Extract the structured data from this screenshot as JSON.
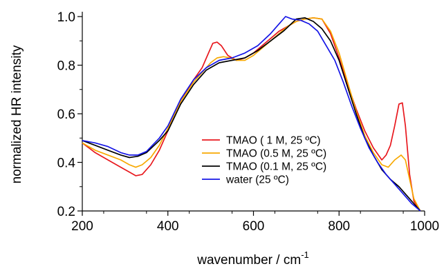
{
  "chart_data": {
    "type": "line",
    "xlabel": "wavenumber / cm",
    "xlabel_superscript": "-1",
    "ylabel": "normalized HR intensity",
    "xlim": [
      200,
      1000
    ],
    "ylim": [
      0.2,
      1.02
    ],
    "xticks": [
      200,
      400,
      600,
      800,
      1000
    ],
    "xtick_labels": [
      "200",
      "400",
      "600",
      "800",
      "1000"
    ],
    "yticks": [
      0.2,
      0.4,
      0.6,
      0.8,
      1.0
    ],
    "ytick_labels": [
      "0.2",
      "0.4",
      "0.6",
      "0.8",
      "1.0"
    ],
    "grid": false,
    "legend_position": "center-right",
    "series": [
      {
        "name": "TMAO (   1 M, 25 ºC)",
        "color": "#e8171d",
        "x": [
          200,
          230,
          260,
          290,
          310,
          325,
          340,
          360,
          380,
          400,
          430,
          460,
          480,
          495,
          505,
          515,
          525,
          540,
          560,
          580,
          600,
          620,
          640,
          660,
          680,
          700,
          720,
          740,
          760,
          780,
          800,
          820,
          840,
          860,
          880,
          900,
          910,
          920,
          930,
          940,
          948,
          955,
          965,
          975,
          990
        ],
        "y": [
          0.48,
          0.44,
          0.41,
          0.38,
          0.36,
          0.345,
          0.35,
          0.39,
          0.45,
          0.53,
          0.65,
          0.74,
          0.79,
          0.85,
          0.89,
          0.895,
          0.88,
          0.84,
          0.82,
          0.83,
          0.85,
          0.88,
          0.91,
          0.94,
          0.96,
          0.98,
          0.99,
          0.995,
          0.99,
          0.93,
          0.83,
          0.72,
          0.62,
          0.53,
          0.46,
          0.41,
          0.43,
          0.47,
          0.55,
          0.64,
          0.645,
          0.55,
          0.35,
          0.24,
          0.2
        ]
      },
      {
        "name": "TMAO (0.5 M, 25 ºC)",
        "color": "#f7a800",
        "x": [
          200,
          230,
          260,
          290,
          310,
          325,
          340,
          360,
          380,
          400,
          430,
          460,
          480,
          500,
          515,
          530,
          545,
          560,
          580,
          600,
          620,
          640,
          660,
          680,
          700,
          720,
          740,
          760,
          780,
          800,
          820,
          840,
          860,
          880,
          900,
          915,
          930,
          945,
          955,
          965,
          975,
          990
        ],
        "y": [
          0.48,
          0.45,
          0.43,
          0.41,
          0.39,
          0.38,
          0.39,
          0.42,
          0.47,
          0.54,
          0.65,
          0.73,
          0.77,
          0.81,
          0.83,
          0.835,
          0.83,
          0.82,
          0.82,
          0.84,
          0.87,
          0.9,
          0.93,
          0.96,
          0.98,
          0.99,
          0.995,
          0.99,
          0.94,
          0.85,
          0.73,
          0.61,
          0.51,
          0.44,
          0.39,
          0.38,
          0.41,
          0.43,
          0.41,
          0.33,
          0.25,
          0.2
        ]
      },
      {
        "name": "TMAO (0.1 M, 25 ºC)",
        "color": "#000000",
        "x": [
          200,
          230,
          260,
          290,
          310,
          330,
          350,
          380,
          400,
          430,
          460,
          490,
          520,
          550,
          580,
          610,
          640,
          670,
          700,
          720,
          740,
          760,
          780,
          800,
          820,
          840,
          860,
          880,
          900,
          920,
          940,
          960,
          980,
          990
        ],
        "y": [
          0.49,
          0.47,
          0.45,
          0.43,
          0.42,
          0.425,
          0.44,
          0.49,
          0.53,
          0.64,
          0.72,
          0.78,
          0.81,
          0.82,
          0.83,
          0.86,
          0.9,
          0.94,
          0.99,
          0.995,
          0.98,
          0.95,
          0.9,
          0.82,
          0.71,
          0.6,
          0.5,
          0.43,
          0.37,
          0.33,
          0.3,
          0.26,
          0.22,
          0.2
        ]
      },
      {
        "name": "water (25 ºC)",
        "color": "#1414e6",
        "x": [
          200,
          230,
          260,
          290,
          310,
          330,
          350,
          380,
          400,
          430,
          460,
          490,
          520,
          550,
          580,
          610,
          640,
          660,
          675,
          690,
          710,
          730,
          750,
          770,
          790,
          810,
          830,
          850,
          870,
          890,
          910,
          930,
          950,
          970,
          990
        ],
        "y": [
          0.49,
          0.48,
          0.465,
          0.44,
          0.43,
          0.43,
          0.445,
          0.5,
          0.55,
          0.66,
          0.74,
          0.79,
          0.82,
          0.83,
          0.85,
          0.88,
          0.93,
          0.97,
          1.0,
          0.99,
          0.985,
          0.97,
          0.94,
          0.88,
          0.82,
          0.73,
          0.63,
          0.54,
          0.46,
          0.4,
          0.35,
          0.31,
          0.27,
          0.23,
          0.2
        ]
      }
    ]
  }
}
